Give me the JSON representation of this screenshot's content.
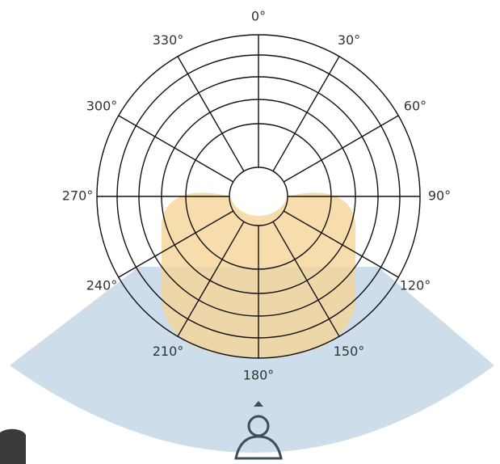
{
  "angle_labels": [
    "0°",
    "30°",
    "60°",
    "90°",
    "120°",
    "150°",
    "180°",
    "210°",
    "240°",
    "270°",
    "300°",
    "330°"
  ]
}
